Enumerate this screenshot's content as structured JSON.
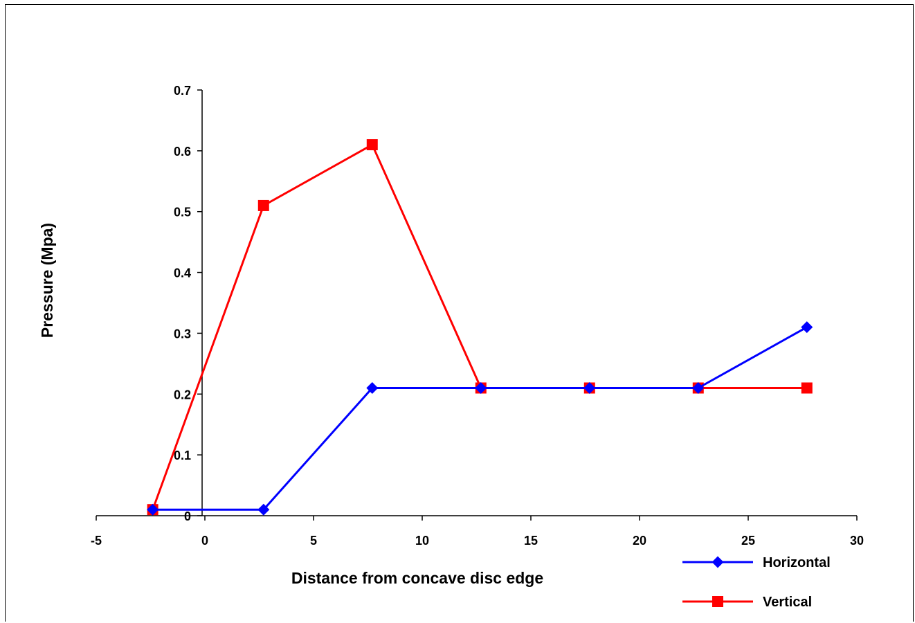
{
  "chart_data": {
    "type": "line",
    "title": "",
    "xlabel": "Distance from concave disc edge",
    "ylabel": "Pressure (Mpa)",
    "xlim": [
      -5,
      30
    ],
    "ylim": [
      0,
      0.7
    ],
    "x_ticks": [
      -5,
      0,
      5,
      10,
      15,
      20,
      25,
      30
    ],
    "y_ticks": [
      0,
      0.1,
      0.2,
      0.3,
      0.4,
      0.5,
      0.6,
      0.7
    ],
    "x_tick_labels": [
      "-5",
      "0",
      "5",
      "10",
      "15",
      "20",
      "25",
      "30"
    ],
    "y_tick_labels": [
      "0",
      "0.1",
      "0.2",
      "0.3",
      "0.4",
      "0.5",
      "0.6",
      "0.7"
    ],
    "grid": false,
    "legend_position": "bottom-right",
    "series": [
      {
        "name": "Horizontal",
        "color": "#0000ff",
        "marker": "diamond",
        "x": [
          -2.4,
          2.7,
          7.7,
          12.7,
          17.7,
          22.7,
          27.7
        ],
        "y": [
          0.01,
          0.01,
          0.21,
          0.21,
          0.21,
          0.21,
          0.31
        ]
      },
      {
        "name": "Vertical",
        "color": "#ff0000",
        "marker": "square",
        "x": [
          -2.4,
          2.7,
          7.7,
          12.7,
          17.7,
          22.7,
          27.7
        ],
        "y": [
          0.01,
          0.51,
          0.61,
          0.21,
          0.21,
          0.21,
          0.21
        ]
      }
    ]
  }
}
